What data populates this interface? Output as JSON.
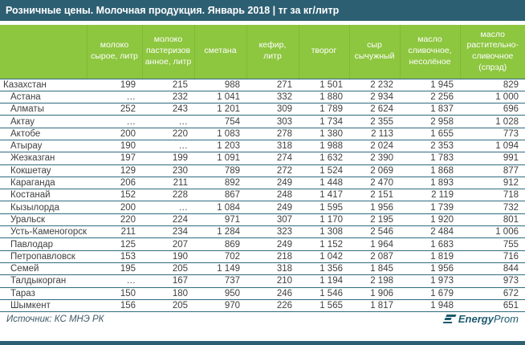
{
  "title": "Розничные цены. Молочная продукция. Январь 2018 | тг за кг/литр",
  "chart_data": {
    "type": "table",
    "title": "Розничные цены. Молочная продукция. Январь 2018, тг за кг/литр",
    "columns": [
      "молоко сырое, литр",
      "молоко пастеризованное, литр",
      "сметана",
      "кефир, литр",
      "творог",
      "сыр сычужный",
      "масло сливочное, несолёное",
      "масло растительно-сливочное (спрэд)"
    ],
    "rows": [
      {
        "region": "Казахстан",
        "values": [
          "199",
          "215",
          "988",
          "271",
          "1 501",
          "2 232",
          "1 945",
          "829"
        ]
      },
      {
        "region": "Астана",
        "values": [
          "…",
          "232",
          "1 041",
          "332",
          "1 880",
          "2 934",
          "2 256",
          "1 000"
        ]
      },
      {
        "region": "Алматы",
        "values": [
          "252",
          "243",
          "1 201",
          "309",
          "1 789",
          "2 624",
          "1 837",
          "696"
        ]
      },
      {
        "region": "Актау",
        "values": [
          "…",
          "…",
          "754",
          "303",
          "1 734",
          "2 355",
          "2 958",
          "1 028"
        ]
      },
      {
        "region": "Актобе",
        "values": [
          "200",
          "220",
          "1 083",
          "278",
          "1 380",
          "2 113",
          "1 655",
          "773"
        ]
      },
      {
        "region": "Атырау",
        "values": [
          "190",
          "…",
          "1 203",
          "318",
          "1 988",
          "2 024",
          "2 353",
          "1 094"
        ]
      },
      {
        "region": "Жезказган",
        "values": [
          "197",
          "199",
          "1 091",
          "274",
          "1 632",
          "2 390",
          "1 783",
          "991"
        ]
      },
      {
        "region": "Кокшетау",
        "values": [
          "129",
          "230",
          "789",
          "272",
          "1 524",
          "2 069",
          "1 868",
          "877"
        ]
      },
      {
        "region": "Караганда",
        "values": [
          "206",
          "211",
          "892",
          "249",
          "1 448",
          "2 470",
          "1 893",
          "912"
        ]
      },
      {
        "region": "Костанай",
        "values": [
          "152",
          "228",
          "867",
          "248",
          "1 417",
          "2 151",
          "2 119",
          "718"
        ]
      },
      {
        "region": "Кызылорда",
        "values": [
          "200",
          "…",
          "1 084",
          "249",
          "1 595",
          "1 956",
          "1 739",
          "732"
        ]
      },
      {
        "region": "Уральск",
        "values": [
          "220",
          "224",
          "971",
          "307",
          "1 170",
          "2 195",
          "1 920",
          "801"
        ]
      },
      {
        "region": "Усть-Каменогорск",
        "values": [
          "211",
          "234",
          "1 284",
          "323",
          "1 308",
          "2 546",
          "2 484",
          "1 006"
        ]
      },
      {
        "region": "Павлодар",
        "values": [
          "125",
          "207",
          "869",
          "249",
          "1 152",
          "1 964",
          "1 683",
          "755"
        ]
      },
      {
        "region": "Петропавловск",
        "values": [
          "153",
          "190",
          "702",
          "218",
          "1 042",
          "2 087",
          "1 819",
          "716"
        ]
      },
      {
        "region": "Семей",
        "values": [
          "195",
          "205",
          "1 149",
          "318",
          "1 356",
          "1 845",
          "1 956",
          "844"
        ]
      },
      {
        "region": "Талдыкорган",
        "values": [
          "…",
          "167",
          "737",
          "210",
          "1 194",
          "2 198",
          "1 973",
          "973"
        ]
      },
      {
        "region": "Тараз",
        "values": [
          "150",
          "180",
          "950",
          "246",
          "1 546",
          "1 906",
          "1 679",
          "672"
        ]
      },
      {
        "region": "Шымкент",
        "values": [
          "156",
          "205",
          "970",
          "226",
          "1 565",
          "1 817",
          "1 948",
          "651"
        ]
      }
    ]
  },
  "footer": {
    "source": "Источник: КС МНЭ РК",
    "logo_bold": "Energy",
    "logo_light": "Prom"
  },
  "colors": {
    "titlebar_bg": "#2D5F73",
    "header_bg": "#8DC63F",
    "row_border": "#2F6B80",
    "body_text": "#3F3F3F",
    "logo_color": "#1C5A6E",
    "source_text": "#3E5A66"
  }
}
